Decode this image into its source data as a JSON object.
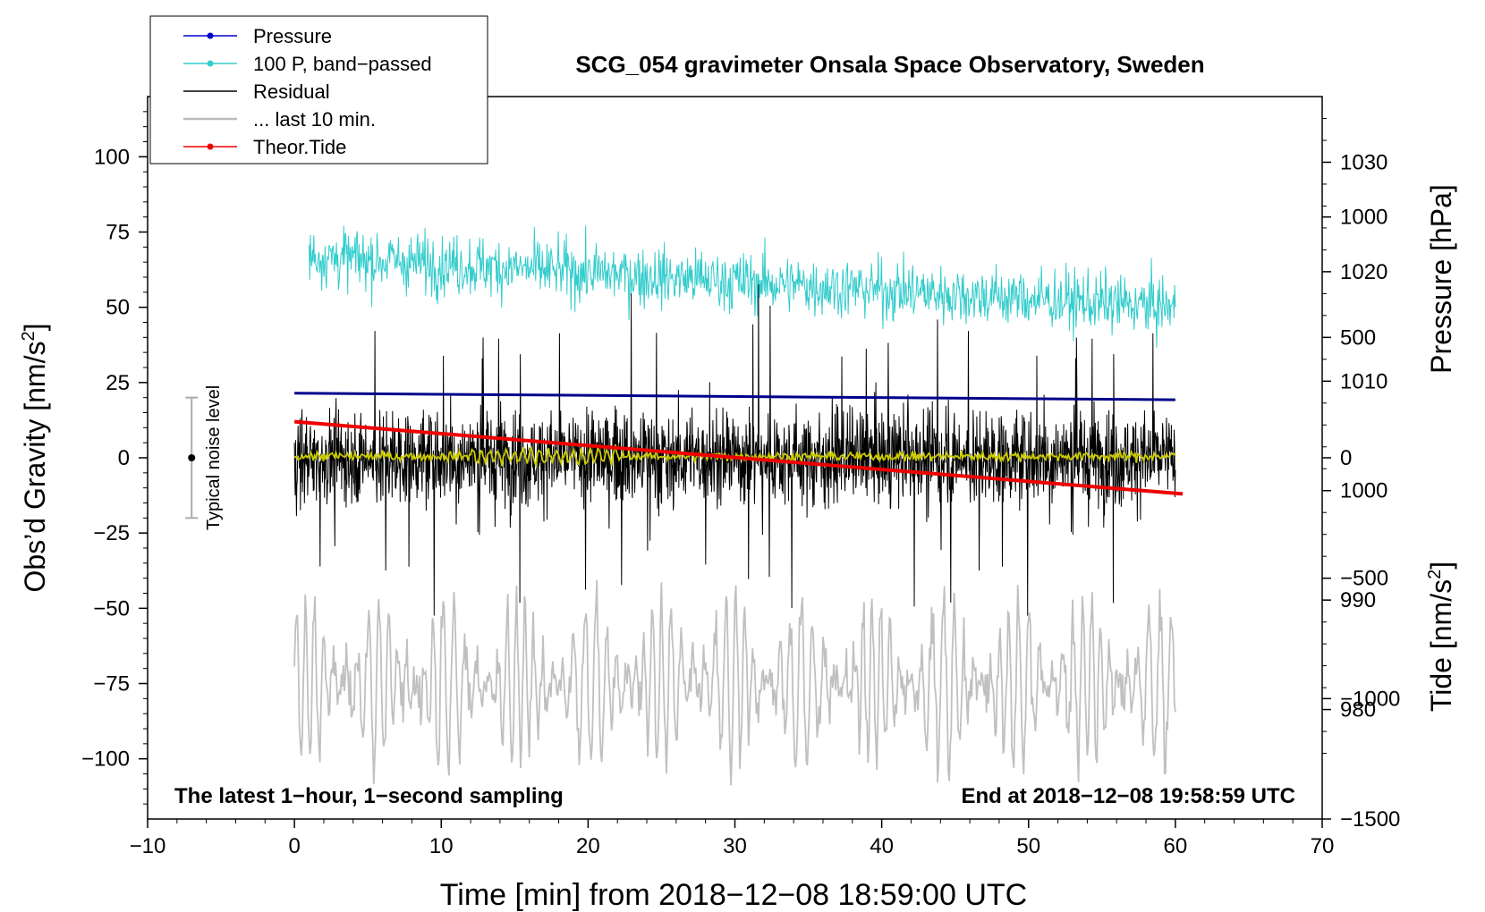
{
  "chart_data": {
    "type": "line",
    "title": "SCG_054 gravimeter Onsala Space Observatory, Sweden",
    "xlabel": "Time [min] from 2018−12−08 18:59:00 UTC",
    "ylabel_left_main": "Obs’d Gravity [nm/s",
    "ylabel_left_sup": "2",
    "ylabel_left_close": "]",
    "ylabel_right_pressure": "Pressure [hPa]",
    "ylabel_right_tide_main": "Tide [nm/s",
    "ylabel_right_tide_sup": "2",
    "ylabel_right_tide_close": "]",
    "xlim": [
      -10,
      70
    ],
    "ylim": [
      -120,
      120
    ],
    "pressure_lim": [
      970,
      1036
    ],
    "tide_lim": [
      -1500,
      1500
    ],
    "x_ticks": [
      -10,
      0,
      10,
      20,
      30,
      40,
      50,
      60,
      70
    ],
    "x_tick_labels": [
      "−10",
      "0",
      "10",
      "20",
      "30",
      "40",
      "50",
      "60",
      "70"
    ],
    "y_ticks": [
      -100,
      -75,
      -50,
      -25,
      0,
      25,
      50,
      75,
      100
    ],
    "y_tick_labels": [
      "−100",
      "−75",
      "−50",
      "−25",
      "0",
      "25",
      "50",
      "75",
      "100"
    ],
    "pressure_ticks": [
      980,
      990,
      1000,
      1010,
      1020,
      1030
    ],
    "pressure_tick_labels": [
      "980",
      "990",
      "1000",
      "1010",
      "1020",
      "1030"
    ],
    "tide_ticks": [
      -1500,
      -1000,
      -500,
      0,
      500,
      1000
    ],
    "tide_tick_labels": [
      "−1500",
      "−1000",
      "−500",
      "0",
      "500",
      "1000"
    ],
    "legend": [
      {
        "label": "Pressure",
        "color": "#0000cc",
        "marker": true
      },
      {
        "label": "100 P, band−passed",
        "color": "#33cccc",
        "marker": true
      },
      {
        "label": "Residual",
        "color": "#000000",
        "marker": false
      },
      {
        "label": "... last 10 min.",
        "color": "#bbbbbb",
        "marker": false
      },
      {
        "label": "Theor.Tide",
        "color": "#ee0000",
        "marker": true
      }
    ],
    "legend_position": "top-left",
    "annotations": {
      "bottom_left": "The latest 1−hour, 1−second sampling",
      "bottom_right": "End at 2018−12−08 19:58:59 UTC",
      "noise_label": "Typical noise level"
    },
    "noise_bar": {
      "x": -7,
      "center": 0,
      "low": -20,
      "high": 20
    },
    "series": [
      {
        "name": "Pressure",
        "axis": "pressure",
        "color": "#00008b",
        "x": [
          0,
          60
        ],
        "values": [
          1008.9,
          1008.3
        ]
      },
      {
        "name": "100 P, band-passed",
        "axis": "gravity",
        "color": "#33cccc",
        "x_range": [
          1,
          60
        ],
        "mean_start": 67,
        "mean_end": 50,
        "amplitude": 7
      },
      {
        "name": "Residual",
        "axis": "gravity",
        "color": "#000000",
        "x_range": [
          0,
          60
        ],
        "mean": 0,
        "amplitude": 22
      },
      {
        "name": "... last 10 min.",
        "axis": "gravity",
        "color": "#c0c0c0",
        "x_range": [
          0,
          60
        ],
        "mean": -75,
        "amplitude": 28
      },
      {
        "name": "Smoothed",
        "axis": "gravity",
        "color": "#cccc00",
        "x_range": [
          0,
          60
        ],
        "mean": 0.5,
        "amplitude": 1.5
      },
      {
        "name": "Theor.Tide",
        "axis": "tide",
        "color": "#ee0000",
        "x": [
          0,
          60.5
        ],
        "values": [
          150,
          -150
        ]
      }
    ]
  }
}
